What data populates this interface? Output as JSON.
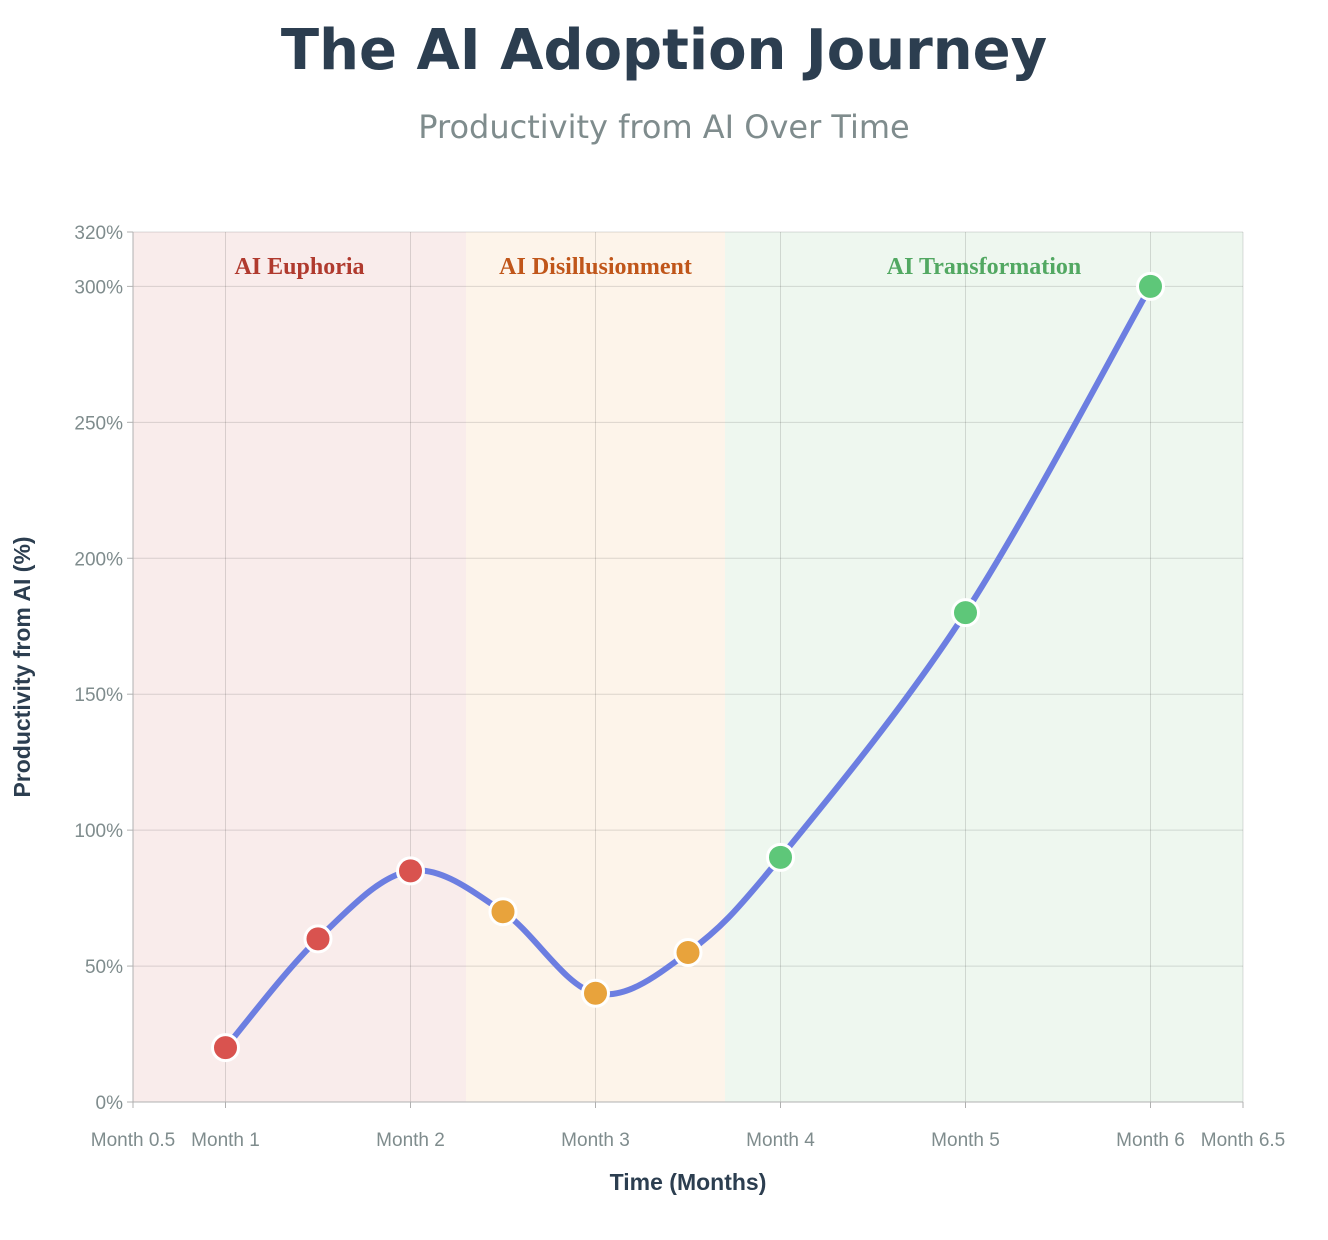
{
  "chart_data": {
    "type": "line",
    "title": "The AI Adoption Journey",
    "subtitle": "Productivity from AI Over Time",
    "xlabel": "Time (Months)",
    "ylabel": "Productivity from AI (%)",
    "xlim": [
      0.5,
      6.5
    ],
    "ylim": [
      0,
      320
    ],
    "x_ticks": [
      {
        "value": 0.5,
        "label": "Month 0.5"
      },
      {
        "value": 1,
        "label": "Month 1"
      },
      {
        "value": 2,
        "label": "Month 2"
      },
      {
        "value": 3,
        "label": "Month 3"
      },
      {
        "value": 4,
        "label": "Month 4"
      },
      {
        "value": 5,
        "label": "Month 5"
      },
      {
        "value": 6,
        "label": "Month 6"
      },
      {
        "value": 6.5,
        "label": "Month 6.5"
      }
    ],
    "y_ticks": [
      {
        "value": 0,
        "label": "0%"
      },
      {
        "value": 50,
        "label": "50%"
      },
      {
        "value": 100,
        "label": "100%"
      },
      {
        "value": 150,
        "label": "150%"
      },
      {
        "value": 200,
        "label": "200%"
      },
      {
        "value": 250,
        "label": "250%"
      },
      {
        "value": 300,
        "label": "300%"
      },
      {
        "value": 320,
        "label": "320%"
      }
    ],
    "grid": true,
    "phases": [
      {
        "name": "AI Euphoria",
        "x_start": 0.5,
        "x_end": 2.3,
        "fill": "#f9eceb",
        "label_color": "#b03a2e"
      },
      {
        "name": "AI Disillusionment",
        "x_start": 2.3,
        "x_end": 3.7,
        "fill": "#fdf4ea",
        "label_color": "#c0561a"
      },
      {
        "name": "AI Transformation",
        "x_start": 3.7,
        "x_end": 6.5,
        "fill": "#eef7ef",
        "label_color": "#52a862"
      }
    ],
    "series": [
      {
        "name": "Productivity from AI",
        "line_color": "#6c7ee1",
        "points": [
          {
            "x": 1,
            "y": 20,
            "phase": "AI Euphoria",
            "color": "#d9534f"
          },
          {
            "x": 1.5,
            "y": 60,
            "phase": "AI Euphoria",
            "color": "#d9534f"
          },
          {
            "x": 2,
            "y": 85,
            "phase": "AI Euphoria",
            "color": "#d9534f"
          },
          {
            "x": 2.5,
            "y": 70,
            "phase": "AI Disillusionment",
            "color": "#e8a33c"
          },
          {
            "x": 3,
            "y": 40,
            "phase": "AI Disillusionment",
            "color": "#e8a33c"
          },
          {
            "x": 3.5,
            "y": 55,
            "phase": "AI Disillusionment",
            "color": "#e8a33c"
          },
          {
            "x": 4,
            "y": 90,
            "phase": "AI Transformation",
            "color": "#5ec779"
          },
          {
            "x": 5,
            "y": 180,
            "phase": "AI Transformation",
            "color": "#5ec779"
          },
          {
            "x": 6,
            "y": 300,
            "phase": "AI Transformation",
            "color": "#5ec779"
          }
        ]
      }
    ]
  }
}
